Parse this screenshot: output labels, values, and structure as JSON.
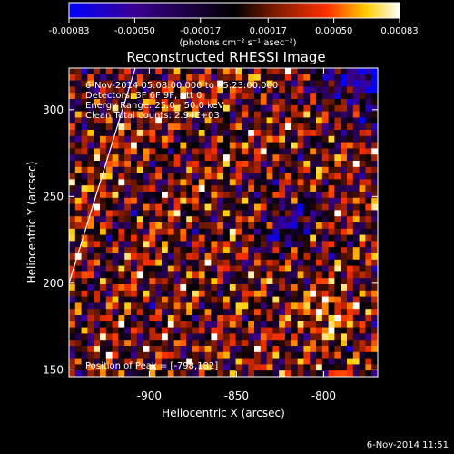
{
  "colorbar": {
    "ticks": [
      "-0.00083",
      "-0.00050",
      "-0.00017",
      "0.00017",
      "0.00050",
      "0.00083"
    ],
    "units": "(photons cm⁻² s⁻¹ asec⁻²)",
    "range": [
      -0.00083,
      0.00083
    ],
    "colors": [
      "#0000ff",
      "#3a0090",
      "#000000",
      "#7a1a00",
      "#ff3000",
      "#ffcc00",
      "#ffffff"
    ]
  },
  "annotations": {
    "time_range": "6-Nov-2014 05:08:00.000 to 05:23:00.000",
    "detectors": "Detectors: 3F 6F 9F, Att 0",
    "energy": "Energy Range: 25.0 - 50.0 keV",
    "clean": "Clean     Total counts: 2.94E+03",
    "peak": "Position of Peak = [-798,182]"
  },
  "footer": {
    "timestamp": "6-Nov-2014 11:51"
  },
  "chart_data": {
    "type": "heatmap",
    "title": "Reconstructed RHESSI Image",
    "xlabel": "Heliocentric X (arcsec)",
    "ylabel": "Heliocentric Y (arcsec)",
    "xlim": [
      -946,
      -769
    ],
    "ylim": [
      146,
      324
    ],
    "xticks": [
      -900,
      -850,
      -800
    ],
    "yticks": [
      150,
      200,
      250,
      300
    ],
    "xtick_labels": [
      "-900",
      "-850",
      "-800"
    ],
    "ytick_labels": [
      "150",
      "200",
      "250",
      "300"
    ],
    "colorbar_range": [
      -0.00083,
      0.00083
    ],
    "peak_position": [
      -798,
      182
    ],
    "limb_line": [
      [
        -946,
        200
      ],
      [
        -908,
        324
      ]
    ]
  }
}
